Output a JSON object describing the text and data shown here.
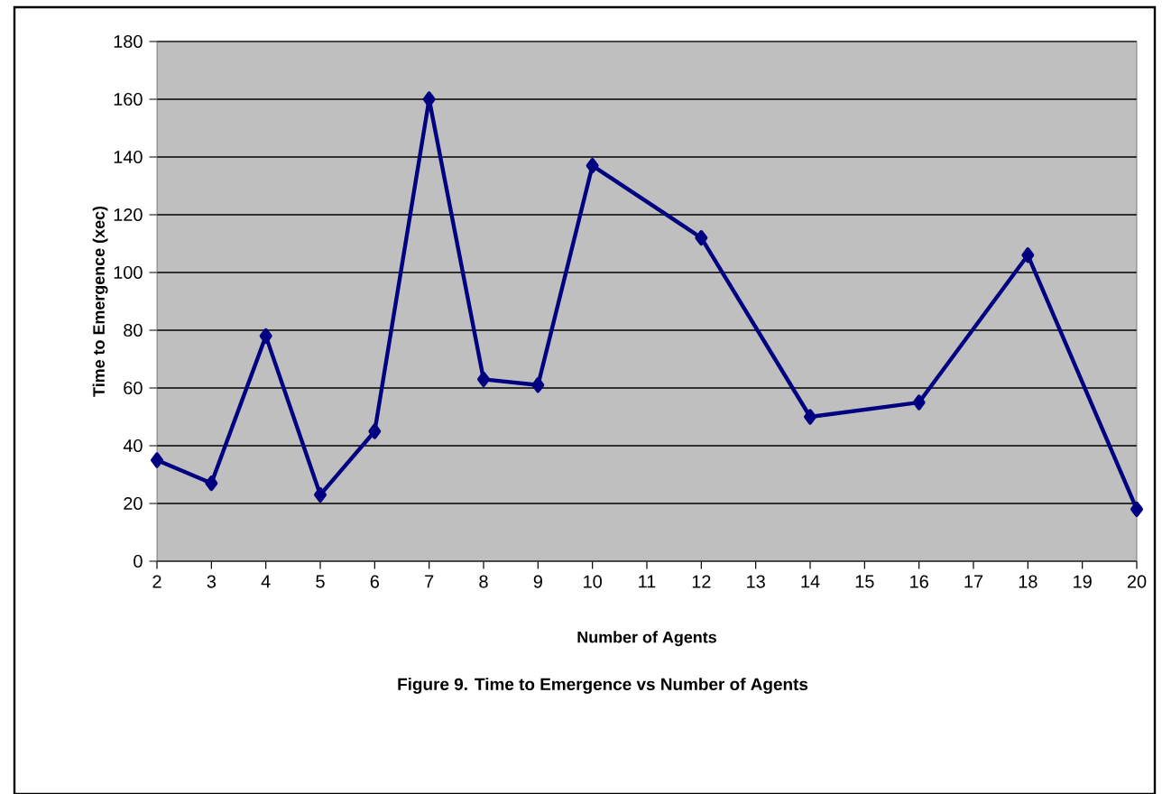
{
  "chart_data": {
    "type": "line",
    "xlabel": "Number of Agents",
    "ylabel": "Time to Emergence (xec)",
    "annotations": [
      "Figure 9.  Time to Emergence vs Number of Agents"
    ],
    "x": [
      2,
      3,
      4,
      5,
      6,
      7,
      8,
      9,
      10,
      12,
      14,
      16,
      18,
      20
    ],
    "series": [
      {
        "color": "#000080",
        "values": [
          35,
          27,
          78,
          23,
          45,
          160,
          63,
          61,
          137,
          112,
          50,
          55,
          106,
          18
        ]
      }
    ],
    "xlim": [
      2,
      20
    ],
    "xticks": [
      2,
      3,
      4,
      5,
      6,
      7,
      8,
      9,
      10,
      11,
      12,
      13,
      14,
      15,
      16,
      17,
      18,
      19,
      20
    ],
    "ylim": [
      0,
      180
    ],
    "yticks": [
      0,
      20,
      40,
      60,
      80,
      100,
      120,
      140,
      160,
      180
    ],
    "grid": "y",
    "marker": "diamond",
    "line_style": "solid"
  }
}
